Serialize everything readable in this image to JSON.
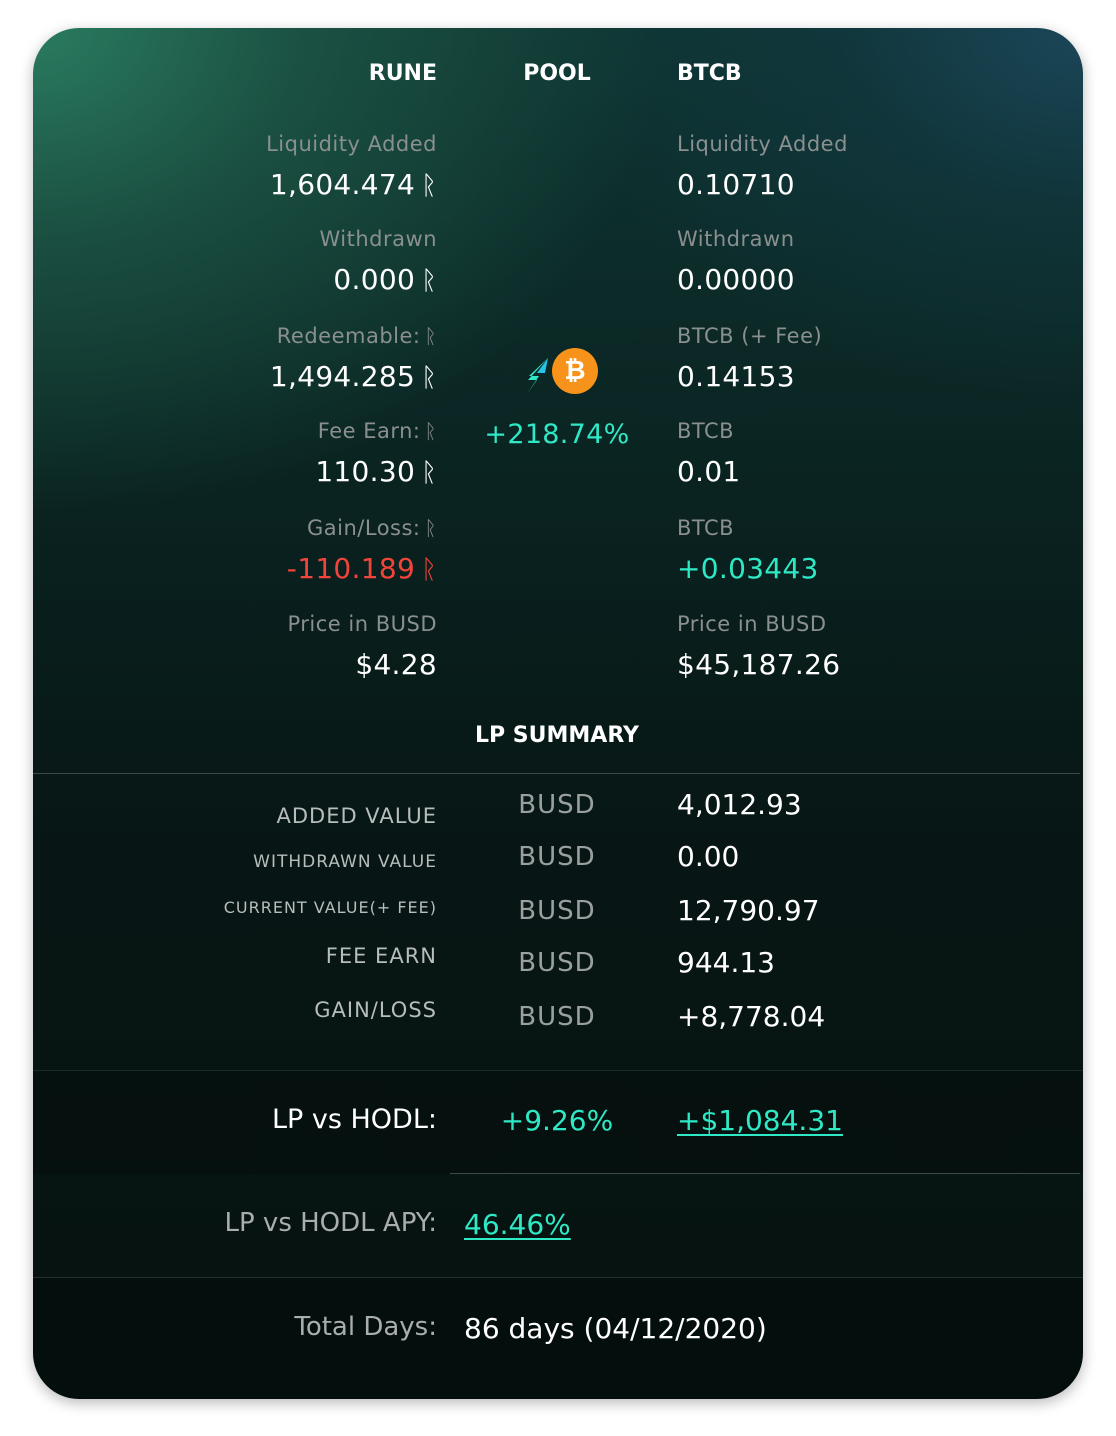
{
  "columns": {
    "rune": "RUNE",
    "pool": "POOL",
    "btcb": "BTCB"
  },
  "rune_symbol": "ᚱ",
  "rune_col": {
    "liquidity_added": {
      "label": "Liquidity Added",
      "value": "1,604.474"
    },
    "withdrawn": {
      "label": "Withdrawn",
      "value": "0.000"
    },
    "redeemable": {
      "label": "Redeemable:",
      "value": "1,494.285"
    },
    "fee_earn": {
      "label": "Fee Earn:",
      "value": "110.30"
    },
    "gain_loss": {
      "label": "Gain/Loss:",
      "value": "-110.189"
    },
    "price": {
      "label": "Price in BUSD",
      "value": "$4.28"
    }
  },
  "btcb_col": {
    "liquidity_added": {
      "label": "Liquidity Added",
      "value": "0.10710"
    },
    "withdrawn": {
      "label": "Withdrawn",
      "value": "0.00000"
    },
    "btcb_fee": {
      "label": "BTCB (+ Fee)",
      "value": "0.14153"
    },
    "btcb1": {
      "label": "BTCB",
      "value": "0.01"
    },
    "btcb2": {
      "label": "BTCB",
      "value": "+0.03443"
    },
    "price": {
      "label": "Price in BUSD",
      "value": "$45,187.26"
    }
  },
  "pool": {
    "percent": "+218.74%",
    "icons": [
      "thorchain-bolt-icon",
      "bitcoin-icon"
    ],
    "bitcoin_glyph": "₿"
  },
  "lp_summary": {
    "title": "LP SUMMARY",
    "rows": [
      {
        "label": "ADDED VALUE",
        "unit": "BUSD",
        "value": "4,012.93"
      },
      {
        "label": "WITHDRAWN VALUE",
        "unit": "BUSD",
        "value": "0.00"
      },
      {
        "label": "CURRENT VALUE(+ FEE)",
        "unit": "BUSD",
        "value": "12,790.97"
      },
      {
        "label": "FEE EARN",
        "unit": "BUSD",
        "value": "944.13"
      },
      {
        "label": "GAIN/LOSS",
        "unit": "BUSD",
        "value": "+8,778.04"
      }
    ]
  },
  "lp_vs_hodl": {
    "label": "LP vs HODL:",
    "percent": "+9.26%",
    "amount": "+$1,084.31"
  },
  "lp_vs_hodl_apy": {
    "label": "LP vs HODL APY:",
    "value": "46.46%"
  },
  "total_days": {
    "label": "Total Days:",
    "value": "86 days (04/12/2020)"
  },
  "colors": {
    "positive": "#2fe8c5",
    "negative": "#f2443a",
    "bitcoin": "#f7931a",
    "label": "#8a8f8f"
  }
}
